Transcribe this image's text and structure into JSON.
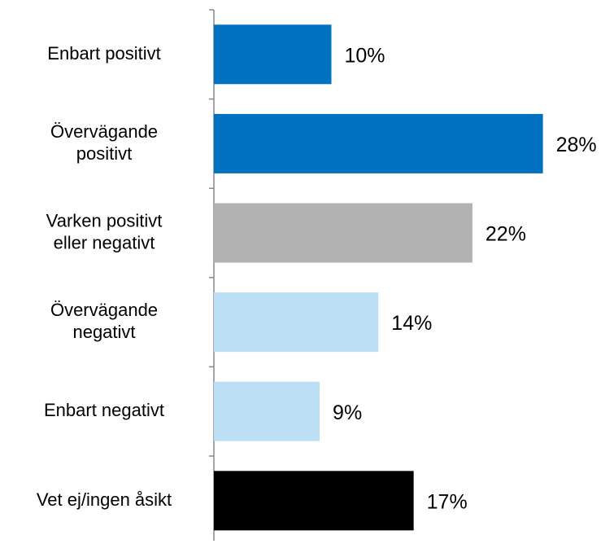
{
  "chart_data": {
    "type": "bar",
    "orientation": "horizontal",
    "categories": [
      "Enbart positivt",
      "Övervägande\npositivt",
      "Varken positivt\neller negativt",
      "Övervägande\nnegativt",
      "Enbart negativt",
      "Vet ej/ingen åsikt"
    ],
    "values": [
      10,
      28,
      22,
      14,
      9,
      17
    ],
    "value_labels": [
      "10%",
      "28%",
      "22%",
      "14%",
      "9%",
      "17%"
    ],
    "colors": [
      "#0070c0",
      "#0070c0",
      "#b2b2b2",
      "#bddff5",
      "#bddff5",
      "#000000"
    ]
  }
}
